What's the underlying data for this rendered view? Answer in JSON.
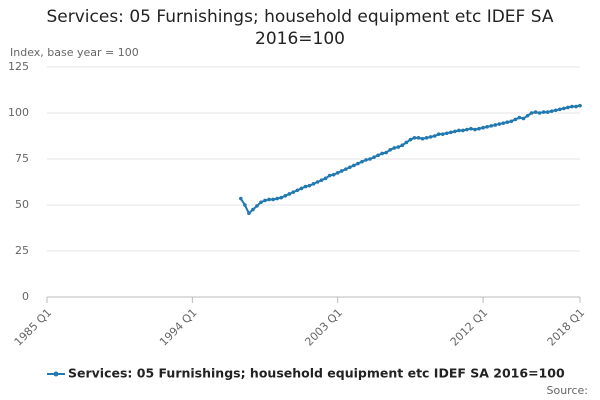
{
  "chart_data": {
    "type": "line",
    "title": "Services: 05 Furnishings; household equipment etc IDEF SA 2016=100",
    "y_label": "Index, base year = 100",
    "source": "Source:",
    "categories": [
      "1985 Q1",
      null,
      null,
      null,
      null,
      null,
      null,
      null,
      null,
      null,
      null,
      null,
      null,
      null,
      null,
      null,
      null,
      null,
      null,
      null,
      null,
      null,
      null,
      null,
      null,
      null,
      null,
      null,
      null,
      null,
      null,
      null,
      null,
      null,
      null,
      null,
      "1994 Q1",
      null,
      null,
      null,
      null,
      null,
      null,
      null,
      null,
      null,
      null,
      null,
      null,
      null,
      null,
      null,
      null,
      null,
      null,
      null,
      null,
      null,
      null,
      null,
      null,
      null,
      null,
      null,
      null,
      null,
      null,
      null,
      null,
      null,
      null,
      null,
      "2003 Q1",
      null,
      null,
      null,
      null,
      null,
      null,
      null,
      null,
      null,
      null,
      null,
      null,
      null,
      null,
      null,
      null,
      null,
      null,
      null,
      null,
      null,
      null,
      null,
      null,
      null,
      null,
      null,
      null,
      null,
      null,
      null,
      null,
      null,
      null,
      null,
      "2012 Q1",
      null,
      null,
      null,
      null,
      null,
      null,
      null,
      null,
      null,
      null,
      null,
      null,
      null,
      null,
      null,
      null,
      null,
      null,
      null,
      null,
      null,
      null,
      null,
      "2018 Q1"
    ],
    "series": [
      {
        "name": "Services: 05 Furnishings; household equipment etc IDEF SA 2016=100",
        "color": "#2079b0",
        "values": [
          null,
          null,
          null,
          null,
          null,
          null,
          null,
          null,
          null,
          null,
          null,
          null,
          null,
          null,
          null,
          null,
          null,
          null,
          null,
          null,
          null,
          null,
          null,
          null,
          null,
          null,
          null,
          null,
          null,
          null,
          null,
          null,
          null,
          null,
          null,
          null,
          null,
          null,
          null,
          null,
          null,
          null,
          null,
          null,
          null,
          null,
          null,
          null,
          53.5,
          50,
          45.5,
          47.5,
          49.5,
          51.5,
          52.5,
          53,
          53,
          53.5,
          54,
          55,
          56,
          57,
          58,
          59,
          60,
          60.5,
          61.5,
          62.5,
          63.5,
          64.5,
          66,
          66.5,
          67.5,
          68.5,
          69.5,
          70.5,
          71.5,
          72.5,
          73.5,
          74.5,
          75,
          76,
          77,
          78,
          78.5,
          80,
          81,
          81.5,
          82.5,
          84,
          85.5,
          86.5,
          86.5,
          86,
          86.5,
          87,
          87.5,
          88.5,
          88.5,
          89,
          89.5,
          90,
          90.5,
          90.5,
          91,
          91.5,
          91,
          91.5,
          92,
          92.5,
          93,
          93.5,
          94,
          94.5,
          95,
          95.5,
          96.5,
          97.5,
          97,
          98.5,
          100,
          100.5,
          100,
          100.5,
          100.5,
          101,
          101.5,
          102,
          102.5,
          103,
          103.5,
          103.5,
          104
        ]
      }
    ],
    "ylim": [
      0,
      125
    ],
    "yticks": [
      0,
      25,
      50,
      75,
      100,
      125
    ],
    "grid": true
  }
}
